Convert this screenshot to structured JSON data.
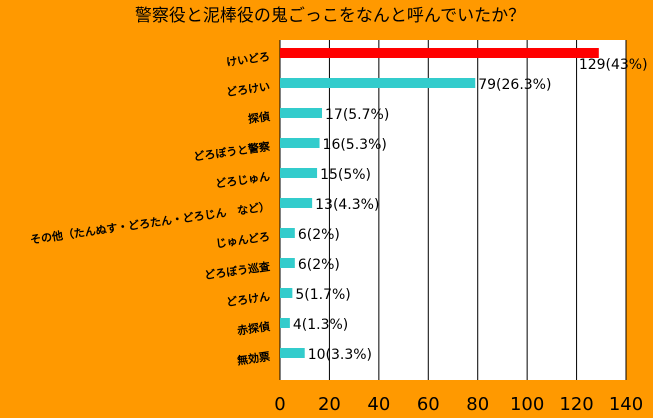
{
  "chart_data": {
    "type": "barh",
    "title": "警察役と泥棒役の鬼ごっこをなんと呼んでいたか？",
    "categories": [
      "けいどろ",
      "どろけい",
      "探偵",
      "どろぼうと警察",
      "どろじゅん",
      "その他（たんぬす・どろたん・どろじん　など）",
      "じゅんどろ",
      "どろぼう巡査",
      "どろけん",
      "赤探偵",
      "無効票"
    ],
    "values": [
      129,
      79,
      17,
      16,
      15,
      13,
      6,
      6,
      5,
      4,
      10
    ],
    "value_labels": [
      "129(43%)",
      "79(26.3%)",
      "17(5.7%)",
      "16(5.3%)",
      "15(5%)",
      "13(4.3%)",
      "6(2%)",
      "6(2%)",
      "5(1.7%)",
      "4(1.3%)",
      "10(3.3%)"
    ],
    "colors": [
      "#ff0000",
      "#33cccc",
      "#33cccc",
      "#33cccc",
      "#33cccc",
      "#33cccc",
      "#33cccc",
      "#33cccc",
      "#33cccc",
      "#33cccc",
      "#33cccc"
    ],
    "xlim": [
      0,
      140
    ],
    "xticks": [
      0,
      20,
      40,
      60,
      80,
      100,
      120,
      140
    ],
    "grid": true
  }
}
